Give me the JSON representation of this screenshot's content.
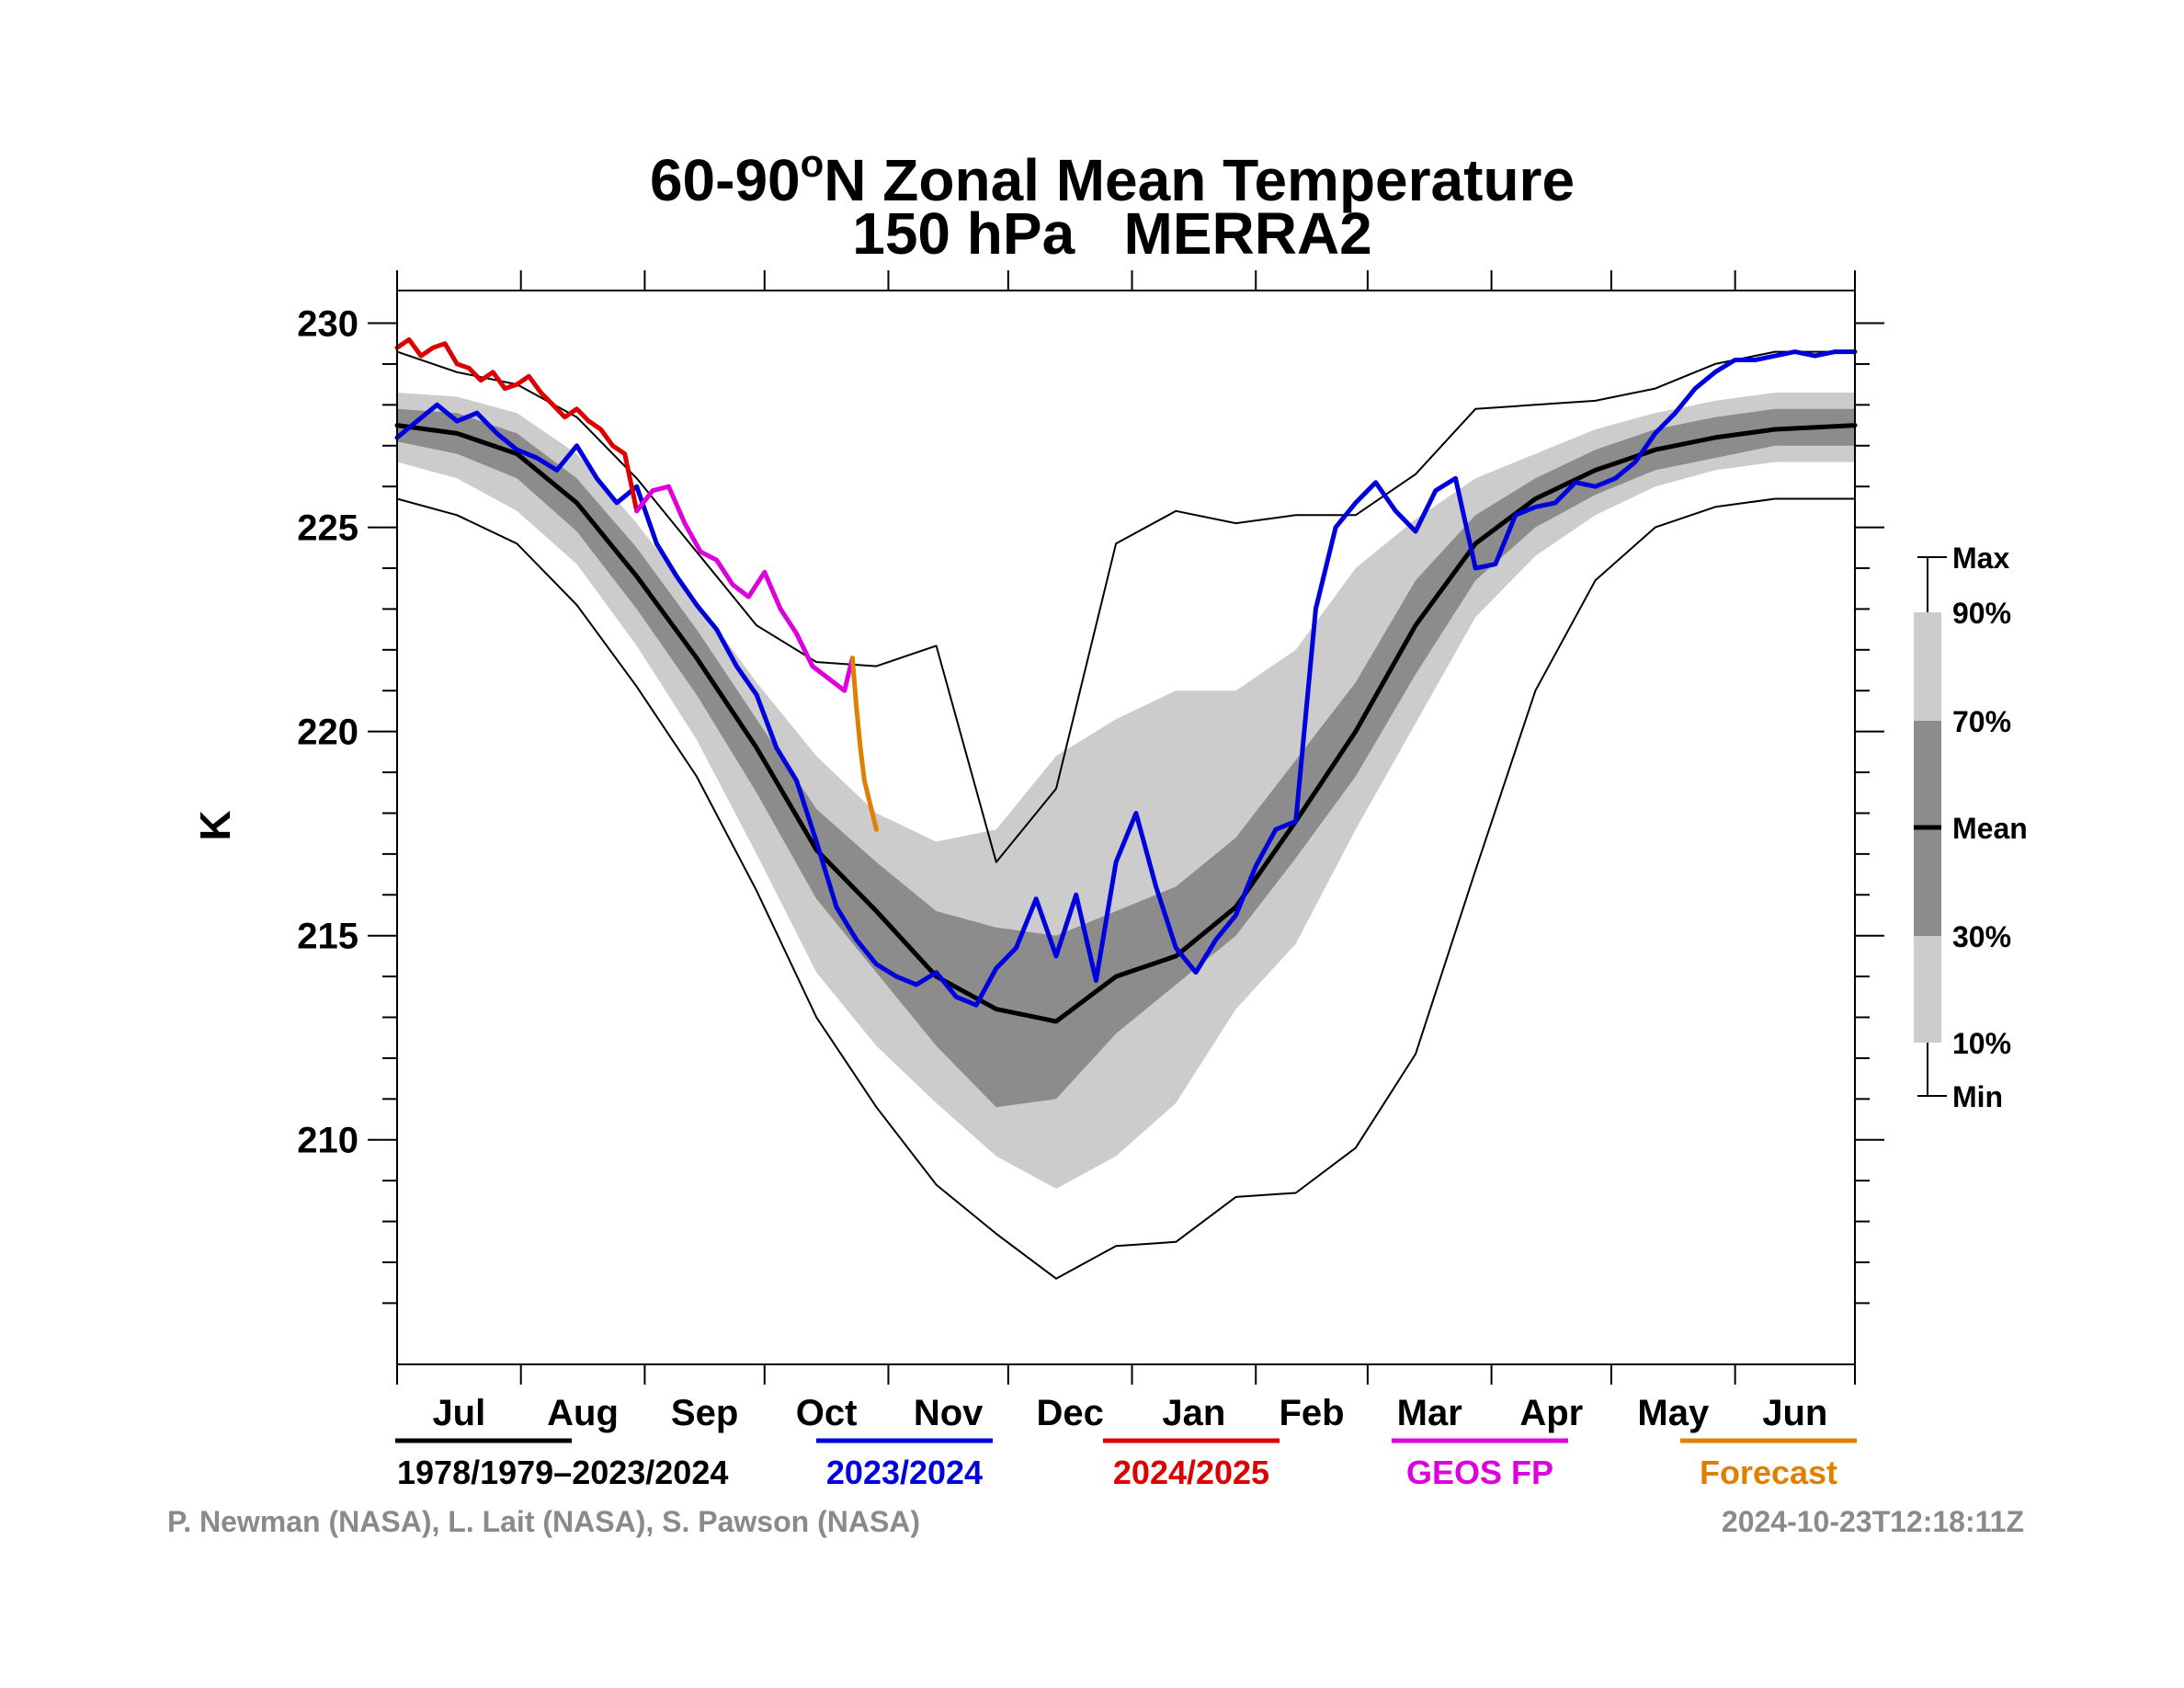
{
  "colors": {
    "climatology": "#000000",
    "season_2023_2024": "#0000dd",
    "season_2024_2025": "#dd0000",
    "geos_fp": "#dd00dd",
    "forecast": "#e08000",
    "band_outer": "#cccccc",
    "band_inner": "#8c8c8c",
    "credit_text": "#8a8a8a"
  },
  "chart_data": {
    "type": "line",
    "title": "60-90°N Zonal Mean Temperature",
    "subtitle": "150 hPa   MERRA2",
    "ylabel": "K",
    "ylim": [
      204.5,
      230.8
    ],
    "yticks": [
      210,
      215,
      220,
      225,
      230
    ],
    "months": [
      "Jul",
      "Aug",
      "Sep",
      "Oct",
      "Nov",
      "Dec",
      "Jan",
      "Feb",
      "Mar",
      "Apr",
      "May",
      "Jun"
    ],
    "x_unit": "day of season (0 = 1 Jul)",
    "xlim": [
      0,
      365
    ],
    "climatology": {
      "x": [
        0,
        15,
        30,
        45,
        60,
        75,
        90,
        105,
        120,
        135,
        150,
        165,
        180,
        195,
        210,
        225,
        240,
        255,
        270,
        285,
        300,
        315,
        330,
        345,
        365
      ],
      "mean": [
        227.5,
        227.3,
        226.8,
        225.6,
        223.8,
        221.8,
        219.6,
        217.1,
        215.6,
        214.0,
        213.2,
        212.9,
        214.0,
        214.5,
        215.7,
        217.8,
        220.0,
        222.6,
        224.6,
        225.7,
        226.4,
        226.9,
        227.2,
        227.4,
        227.5
      ],
      "p30": [
        227.1,
        226.8,
        226.2,
        224.9,
        223.0,
        220.9,
        218.5,
        215.9,
        214.1,
        212.3,
        210.8,
        211.0,
        212.6,
        213.8,
        215.0,
        216.9,
        218.9,
        221.4,
        223.7,
        225.0,
        225.8,
        226.4,
        226.7,
        227.0,
        227.0
      ],
      "p70": [
        227.9,
        227.8,
        227.3,
        226.2,
        224.5,
        222.5,
        220.3,
        218.1,
        216.8,
        215.6,
        215.2,
        215.0,
        215.6,
        216.2,
        217.4,
        219.3,
        221.2,
        223.7,
        225.3,
        226.2,
        226.9,
        227.4,
        227.7,
        227.9,
        227.9
      ],
      "p10": [
        226.6,
        226.2,
        225.4,
        224.1,
        222.1,
        219.8,
        217.0,
        214.1,
        212.3,
        210.9,
        209.6,
        208.8,
        209.6,
        210.9,
        213.2,
        214.8,
        217.6,
        220.2,
        222.8,
        224.3,
        225.3,
        226.0,
        226.4,
        226.6,
        226.6
      ],
      "p90": [
        228.3,
        228.2,
        227.8,
        226.8,
        225.1,
        223.2,
        221.2,
        219.4,
        218.0,
        217.3,
        217.6,
        219.4,
        220.3,
        221.0,
        221.0,
        222.0,
        224.0,
        225.2,
        226.2,
        226.8,
        227.4,
        227.8,
        228.1,
        228.3,
        228.3
      ],
      "max": [
        229.3,
        228.8,
        228.5,
        227.7,
        226.2,
        224.4,
        222.6,
        221.7,
        221.6,
        222.1,
        216.8,
        218.6,
        224.6,
        225.4,
        225.1,
        225.3,
        225.3,
        226.3,
        227.9,
        228.0,
        228.1,
        228.4,
        229.0,
        229.3,
        229.3
      ],
      "min": [
        225.7,
        225.3,
        224.6,
        223.1,
        221.1,
        218.9,
        216.1,
        213.0,
        210.8,
        208.9,
        207.7,
        206.6,
        207.4,
        207.5,
        208.6,
        208.7,
        209.8,
        212.1,
        216.6,
        221.0,
        223.7,
        225.0,
        225.5,
        225.7,
        225.7
      ]
    },
    "series": [
      {
        "name": "2023/2024",
        "color": "#0000dd",
        "x": [
          0,
          5,
          10,
          15,
          20,
          25,
          30,
          35,
          40,
          45,
          50,
          55,
          60,
          65,
          70,
          75,
          80,
          85,
          90,
          95,
          100,
          105,
          110,
          115,
          120,
          125,
          130,
          135,
          140,
          145,
          150,
          155,
          160,
          165,
          170,
          175,
          180,
          185,
          190,
          195,
          200,
          205,
          210,
          215,
          220,
          225,
          230,
          235,
          240,
          245,
          250,
          255,
          260,
          265,
          270,
          275,
          280,
          285,
          290,
          295,
          300,
          305,
          310,
          315,
          320,
          325,
          330,
          335,
          340,
          345,
          350,
          355,
          360,
          365
        ],
        "y": [
          227.2,
          227.6,
          228.0,
          227.6,
          227.8,
          227.3,
          226.9,
          226.7,
          226.4,
          227.0,
          226.2,
          225.6,
          226.0,
          224.6,
          223.8,
          223.1,
          222.5,
          221.6,
          220.9,
          219.6,
          218.8,
          217.3,
          215.7,
          214.9,
          214.3,
          214.0,
          213.8,
          214.1,
          213.5,
          213.3,
          214.2,
          214.7,
          215.9,
          214.5,
          216.0,
          213.9,
          216.8,
          218.0,
          216.2,
          214.7,
          214.1,
          214.9,
          215.5,
          216.7,
          217.6,
          217.8,
          223.0,
          225.0,
          225.6,
          226.1,
          225.4,
          224.9,
          225.9,
          226.2,
          224.0,
          224.1,
          225.3,
          225.5,
          225.6,
          226.1,
          226.0,
          226.2,
          226.6,
          227.3,
          227.8,
          228.4,
          228.8,
          229.1,
          229.1,
          229.2,
          229.3,
          229.2,
          229.3,
          229.3
        ]
      },
      {
        "name": "2024/2025",
        "color": "#dd0000",
        "x": [
          0,
          3,
          6,
          9,
          12,
          15,
          18,
          21,
          24,
          27,
          30,
          33,
          36,
          39,
          42,
          45,
          48,
          51,
          54,
          57,
          60
        ],
        "y": [
          229.4,
          229.6,
          229.2,
          229.4,
          229.5,
          229.0,
          228.9,
          228.6,
          228.8,
          228.4,
          228.5,
          228.7,
          228.3,
          228.0,
          227.7,
          227.9,
          227.6,
          227.4,
          227.0,
          226.8,
          225.4
        ]
      },
      {
        "name": "GEOS FP",
        "color": "#dd00dd",
        "x": [
          60,
          64,
          68,
          72,
          76,
          80,
          84,
          88,
          92,
          96,
          100,
          104,
          108,
          112,
          114
        ],
        "y": [
          225.4,
          225.9,
          226.0,
          225.1,
          224.4,
          224.2,
          223.6,
          223.3,
          223.9,
          223.0,
          222.4,
          221.6,
          221.3,
          221.0,
          221.8
        ]
      },
      {
        "name": "Forecast",
        "color": "#e08000",
        "x": [
          114,
          115,
          116,
          117,
          118,
          119,
          120
        ],
        "y": [
          221.8,
          220.6,
          219.6,
          218.8,
          218.4,
          218.0,
          217.6
        ]
      }
    ],
    "climatology_name": "1978/1979–2023/2024",
    "key_labels": {
      "max": "Max",
      "p90": "90%",
      "p70": "70%",
      "mean": "Mean",
      "p30": "30%",
      "p10": "10%",
      "min": "Min"
    }
  },
  "credits": {
    "authors": "P. Newman (NASA), L. Lait (NASA), S. Pawson (NASA)",
    "timestamp": "2024-10-23T12:18:11Z"
  }
}
